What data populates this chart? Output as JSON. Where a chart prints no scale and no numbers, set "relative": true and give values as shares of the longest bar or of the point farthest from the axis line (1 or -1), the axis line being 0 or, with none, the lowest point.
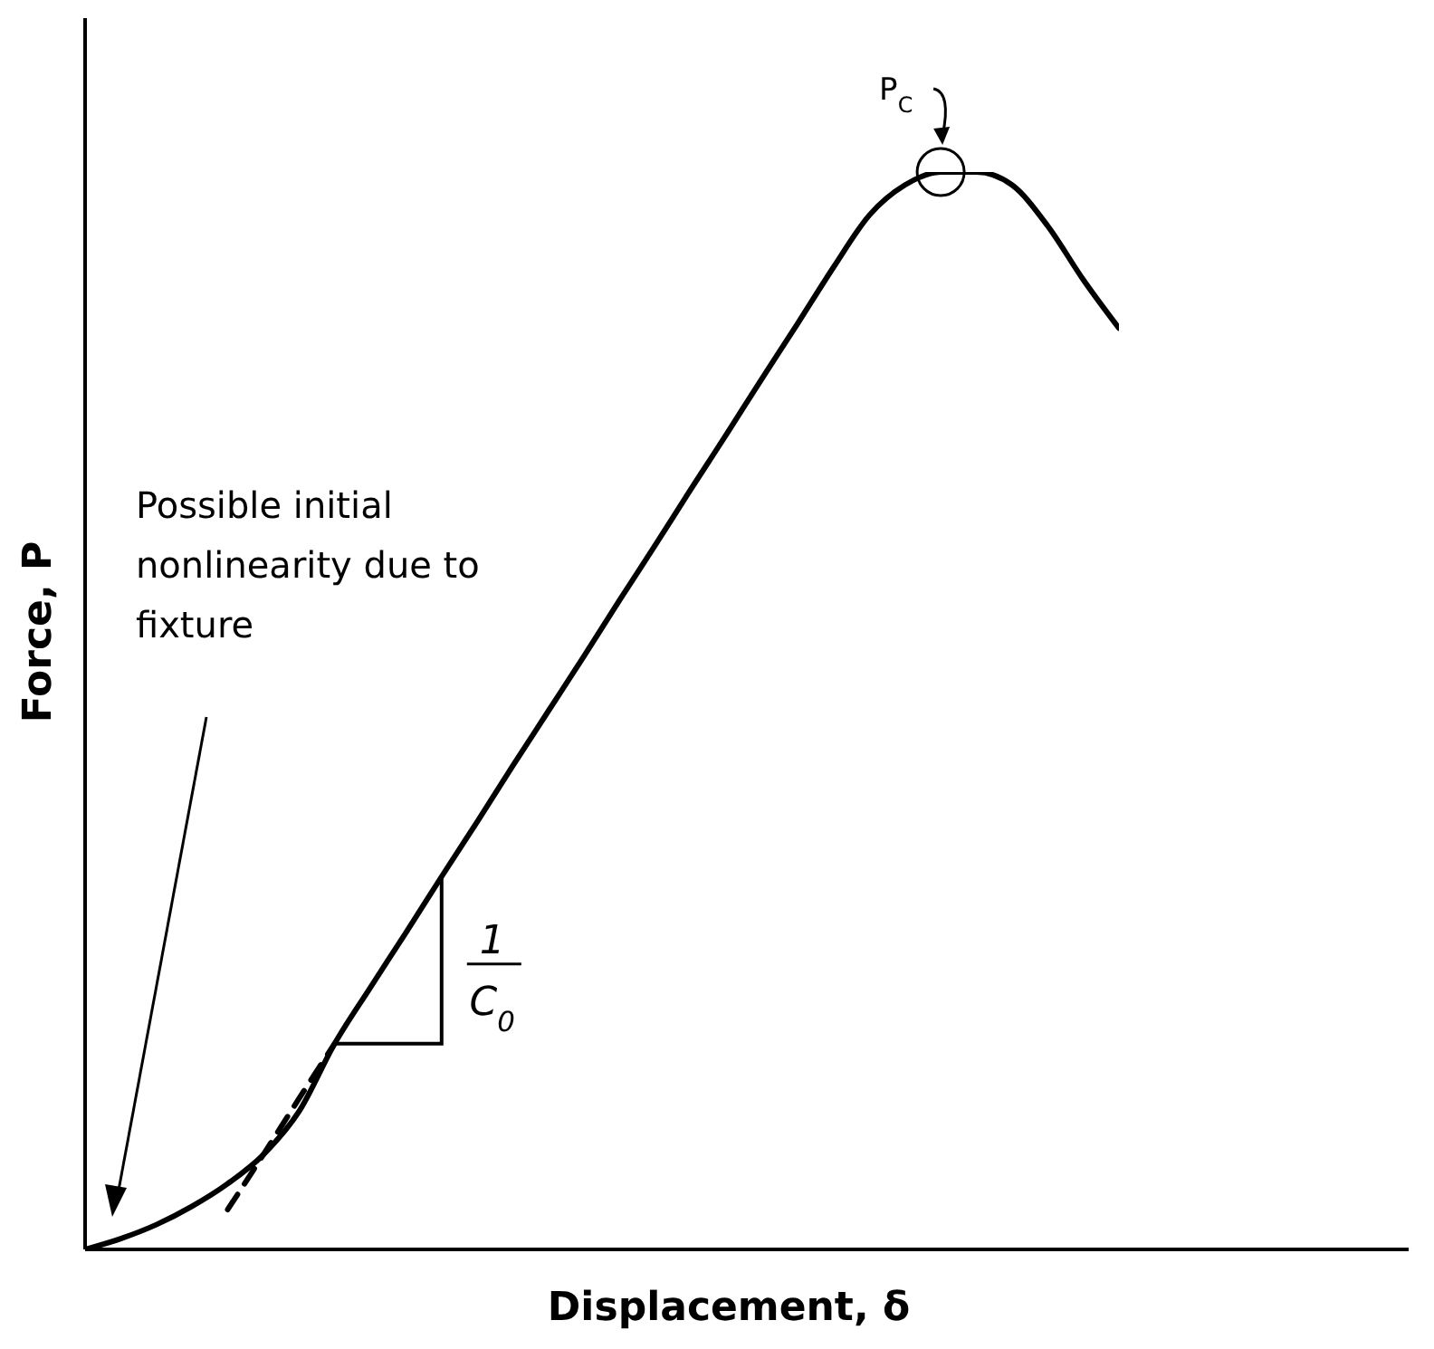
{
  "chart_data": {
    "type": "line",
    "relative": true,
    "xlabel": "Displacement, δ",
    "ylabel": "Force, P",
    "categories": [
      null,
      null,
      null,
      null,
      null,
      null,
      null,
      null,
      null,
      null,
      null,
      null,
      null,
      null,
      null,
      null,
      null,
      null,
      null,
      null,
      null,
      null,
      null,
      null,
      null,
      null,
      null,
      null,
      null,
      null
    ],
    "series": [
      {
        "color": "#000000",
        "line_style": "solid",
        "values": [
          0,
          0.01,
          0.023,
          0.04,
          0.061,
          0.088,
          0.128,
          0.191,
          0.243,
          0.294,
          0.346,
          0.397,
          0.449,
          0.5,
          0.551,
          0.603,
          0.654,
          0.706,
          0.757,
          0.809,
          0.86,
          0.912,
          0.96,
          0.988,
          1,
          1,
          0.988,
          0.95,
          0.9,
          0.855
        ]
      },
      {
        "color": "#000000",
        "line_style": "dashed",
        "values": [
          null,
          null,
          null,
          null,
          0.037,
          0.088,
          0.14,
          0.191,
          null,
          null,
          null,
          null,
          null,
          null,
          null,
          null,
          null,
          null,
          null,
          null,
          null,
          null,
          null,
          null,
          null,
          null,
          null,
          null,
          null,
          null
        ]
      }
    ],
    "marker": "none",
    "annotations": [
      "P$_{C}$",
      "Possible initial nonlinearity due to fixture",
      "1",
      "C$_{0}$"
    ]
  }
}
